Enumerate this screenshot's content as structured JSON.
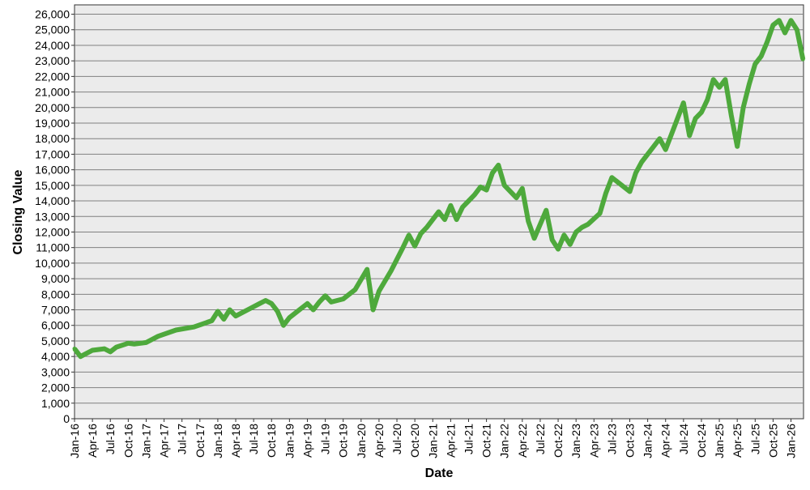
{
  "chart_data": {
    "type": "line",
    "title": "",
    "xlabel": "Date",
    "ylabel": "Closing Value",
    "ylim": [
      0,
      26600
    ],
    "xlim": [
      "2016-01",
      "2026-03"
    ],
    "grid": true,
    "legend": "none",
    "colors": {
      "line": "#4ea93c",
      "plot_bg": "#ebebeb",
      "grid": "#808080"
    },
    "y_ticks": [
      0,
      1000,
      2000,
      3000,
      4000,
      5000,
      6000,
      7000,
      8000,
      9000,
      10000,
      11000,
      12000,
      13000,
      14000,
      15000,
      16000,
      17000,
      18000,
      19000,
      20000,
      21000,
      22000,
      23000,
      24000,
      25000,
      26000
    ],
    "y_tick_labels": [
      "0",
      "1,000",
      "2,000",
      "3,000",
      "4,000",
      "5,000",
      "6,000",
      "7,000",
      "8,000",
      "9,000",
      "10,000",
      "11,000",
      "12,000",
      "13,000",
      "14,000",
      "15,000",
      "16,000",
      "17,000",
      "18,000",
      "19,000",
      "20,000",
      "21,000",
      "22,000",
      "23,000",
      "24,000",
      "25,000",
      "26,000"
    ],
    "x_tick_labels": [
      "Jan-16",
      "Apr-16",
      "Jul-16",
      "Oct-16",
      "Jan-17",
      "Apr-17",
      "Jul-17",
      "Oct-17",
      "Jan-18",
      "Apr-18",
      "Jul-18",
      "Oct-18",
      "Jan-19",
      "Apr-19",
      "Jul-19",
      "Oct-19",
      "Jan-20",
      "Apr-20",
      "Jul-20",
      "Oct-20",
      "Jan-21",
      "Apr-21",
      "Jul-21",
      "Oct-21",
      "Jan-22",
      "Apr-22",
      "Jul-22",
      "Oct-22",
      "Jan-23",
      "Apr-23",
      "Jul-23",
      "Oct-23",
      "Jan-24",
      "Apr-24",
      "Jul-24",
      "Oct-24",
      "Jan-25",
      "Apr-25",
      "Jul-25",
      "Oct-25",
      "Jan-26"
    ],
    "x": [
      "2016-01",
      "2016-02",
      "2016-04",
      "2016-06",
      "2016-07",
      "2016-08",
      "2016-10",
      "2016-11",
      "2017-01",
      "2017-03",
      "2017-06",
      "2017-09",
      "2017-12",
      "2018-01",
      "2018-02",
      "2018-03",
      "2018-04",
      "2018-06",
      "2018-08",
      "2018-09",
      "2018-10",
      "2018-11",
      "2018-12",
      "2019-01",
      "2019-04",
      "2019-05",
      "2019-06",
      "2019-07",
      "2019-08",
      "2019-10",
      "2019-12",
      "2020-02",
      "2020-03",
      "2020-04",
      "2020-06",
      "2020-08",
      "2020-09",
      "2020-10",
      "2020-11",
      "2020-12",
      "2021-02",
      "2021-03",
      "2021-04",
      "2021-05",
      "2021-06",
      "2021-07",
      "2021-08",
      "2021-09",
      "2021-10",
      "2021-11",
      "2021-12",
      "2022-01",
      "2022-03",
      "2022-04",
      "2022-05",
      "2022-06",
      "2022-08",
      "2022-09",
      "2022-10",
      "2022-11",
      "2022-12",
      "2023-01",
      "2023-02",
      "2023-03",
      "2023-05",
      "2023-06",
      "2023-07",
      "2023-08",
      "2023-10",
      "2023-11",
      "2023-12",
      "2024-02",
      "2024-03",
      "2024-04",
      "2024-05",
      "2024-07",
      "2024-08",
      "2024-09",
      "2024-10",
      "2024-11",
      "2024-12",
      "2025-01",
      "2025-02",
      "2025-03",
      "2025-04",
      "2025-05",
      "2025-06",
      "2025-07",
      "2025-08",
      "2025-09",
      "2025-10",
      "2025-11",
      "2025-12",
      "2026-01",
      "2026-02",
      "2026-03"
    ],
    "y": [
      4500,
      4000,
      4400,
      4500,
      4300,
      4600,
      4850,
      4800,
      4900,
      5300,
      5700,
      5900,
      6300,
      6900,
      6400,
      7000,
      6600,
      7000,
      7400,
      7600,
      7400,
      6900,
      6000,
      6500,
      7400,
      7000,
      7500,
      7900,
      7500,
      7700,
      8300,
      9600,
      7000,
      8200,
      9500,
      11000,
      11800,
      11100,
      11900,
      12300,
      13300,
      12800,
      13700,
      12800,
      13600,
      14000,
      14400,
      14900,
      14700,
      15800,
      16300,
      15000,
      14200,
      14800,
      12700,
      11600,
      13400,
      11500,
      10900,
      11800,
      11200,
      12000,
      12300,
      12500,
      13200,
      14500,
      15500,
      15200,
      14600,
      15800,
      16500,
      17500,
      18000,
      17300,
      18300,
      20300,
      18200,
      19300,
      19700,
      20500,
      21800,
      21300,
      21800,
      19500,
      17500,
      20000,
      21500,
      22800,
      23300,
      24200,
      25300,
      25600,
      24800,
      25600,
      25000,
      23100
    ]
  }
}
